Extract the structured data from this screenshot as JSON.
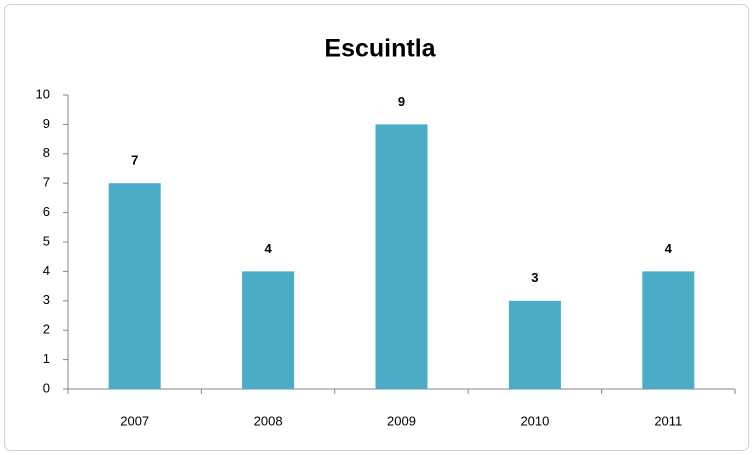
{
  "chart_data": {
    "type": "bar",
    "title": "Escuintla",
    "categories": [
      "2007",
      "2008",
      "2009",
      "2010",
      "2011"
    ],
    "values": [
      7,
      4,
      9,
      3,
      4
    ],
    "color": "#4bacc6",
    "ylim": [
      0,
      10
    ],
    "yticks": [
      0,
      1,
      2,
      3,
      4,
      5,
      6,
      7,
      8,
      9,
      10
    ],
    "grid": false
  }
}
